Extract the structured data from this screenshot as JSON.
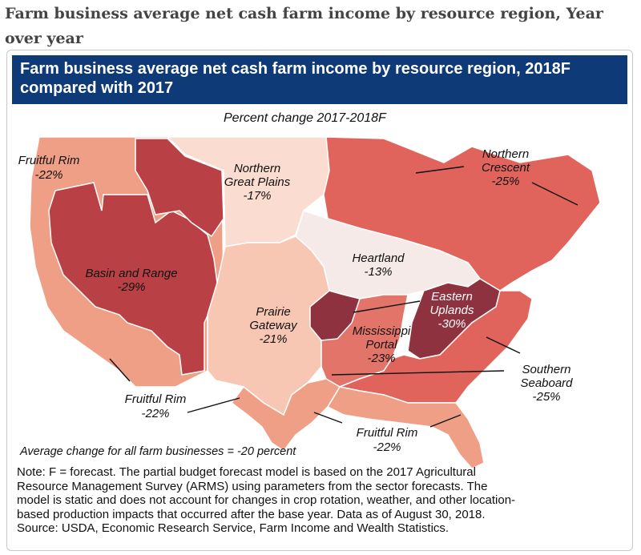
{
  "page": {
    "heading": "Farm business average net cash farm income by resource region, Year over year"
  },
  "figure": {
    "banner_title": "Farm business average net cash farm income by resource region, 2018F compared with 2017",
    "subtitle": "Percent change 2017-2018F",
    "average_note": "Average change for all farm businesses = -20 percent",
    "note_lines": [
      "Note: F = forecast. The partial budget forecast model is based on the 2017 Agricultural",
      "Resource Management Survey (ARMS) using parameters from the sector forecasts. The",
      "model is static and does not account for changes in crop rotation, weather, and other location-",
      "based production impacts that occurred after the base year. Data as of August 30, 2018.",
      "Source: USDA, Economic Research Service, Farm Income and Wealth Statistics."
    ]
  },
  "regions": {
    "fruitful_rim_nw": {
      "name": "Fruitful Rim",
      "value": "-22%",
      "pct": -22,
      "color": "#ef9f86"
    },
    "basin_range": {
      "name_line1": "Basin and Range",
      "value": "-29%",
      "pct": -29,
      "color": "#b94044"
    },
    "northern_great_plains": {
      "name_line1": "Northern",
      "name_line2": "Great Plains",
      "value": "-17%",
      "pct": -17,
      "color": "#fbdcd0"
    },
    "northern_crescent": {
      "name_line1": "Northern",
      "name_line2": "Crescent",
      "value": "-25%",
      "pct": -25,
      "color": "#e0645b"
    },
    "heartland": {
      "name_line1": "Heartland",
      "value": "-13%",
      "pct": -13,
      "color": "#f6eae8"
    },
    "eastern_uplands": {
      "name_line1": "Eastern",
      "name_line2": "Uplands",
      "value": "-30%",
      "pct": -30,
      "color": "#8e3240"
    },
    "prairie_gateway": {
      "name_line1": "Prairie",
      "name_line2": "Gateway",
      "value": "-21%",
      "pct": -21,
      "color": "#f7c7b4"
    },
    "mississippi_portal": {
      "name_line1": "Mississippi",
      "name_line2": "Portal",
      "value": "-23%",
      "pct": -23,
      "color": "#e3746a"
    },
    "southern_seaboard": {
      "name_line1": "Southern",
      "name_line2": "Seaboard",
      "value": "-25%",
      "pct": -25,
      "color": "#e0645b"
    },
    "fruitful_rim_sw": {
      "name": "Fruitful Rim",
      "value": "-22%",
      "pct": -22,
      "color": "#ef9f86"
    },
    "fruitful_rim_se": {
      "name": "Fruitful Rim",
      "value": "-22%",
      "pct": -22,
      "color": "#ef9f86"
    }
  },
  "colors": {
    "banner": "#0e3a78",
    "ocean": "#ffffff",
    "border": "#ffffff"
  }
}
